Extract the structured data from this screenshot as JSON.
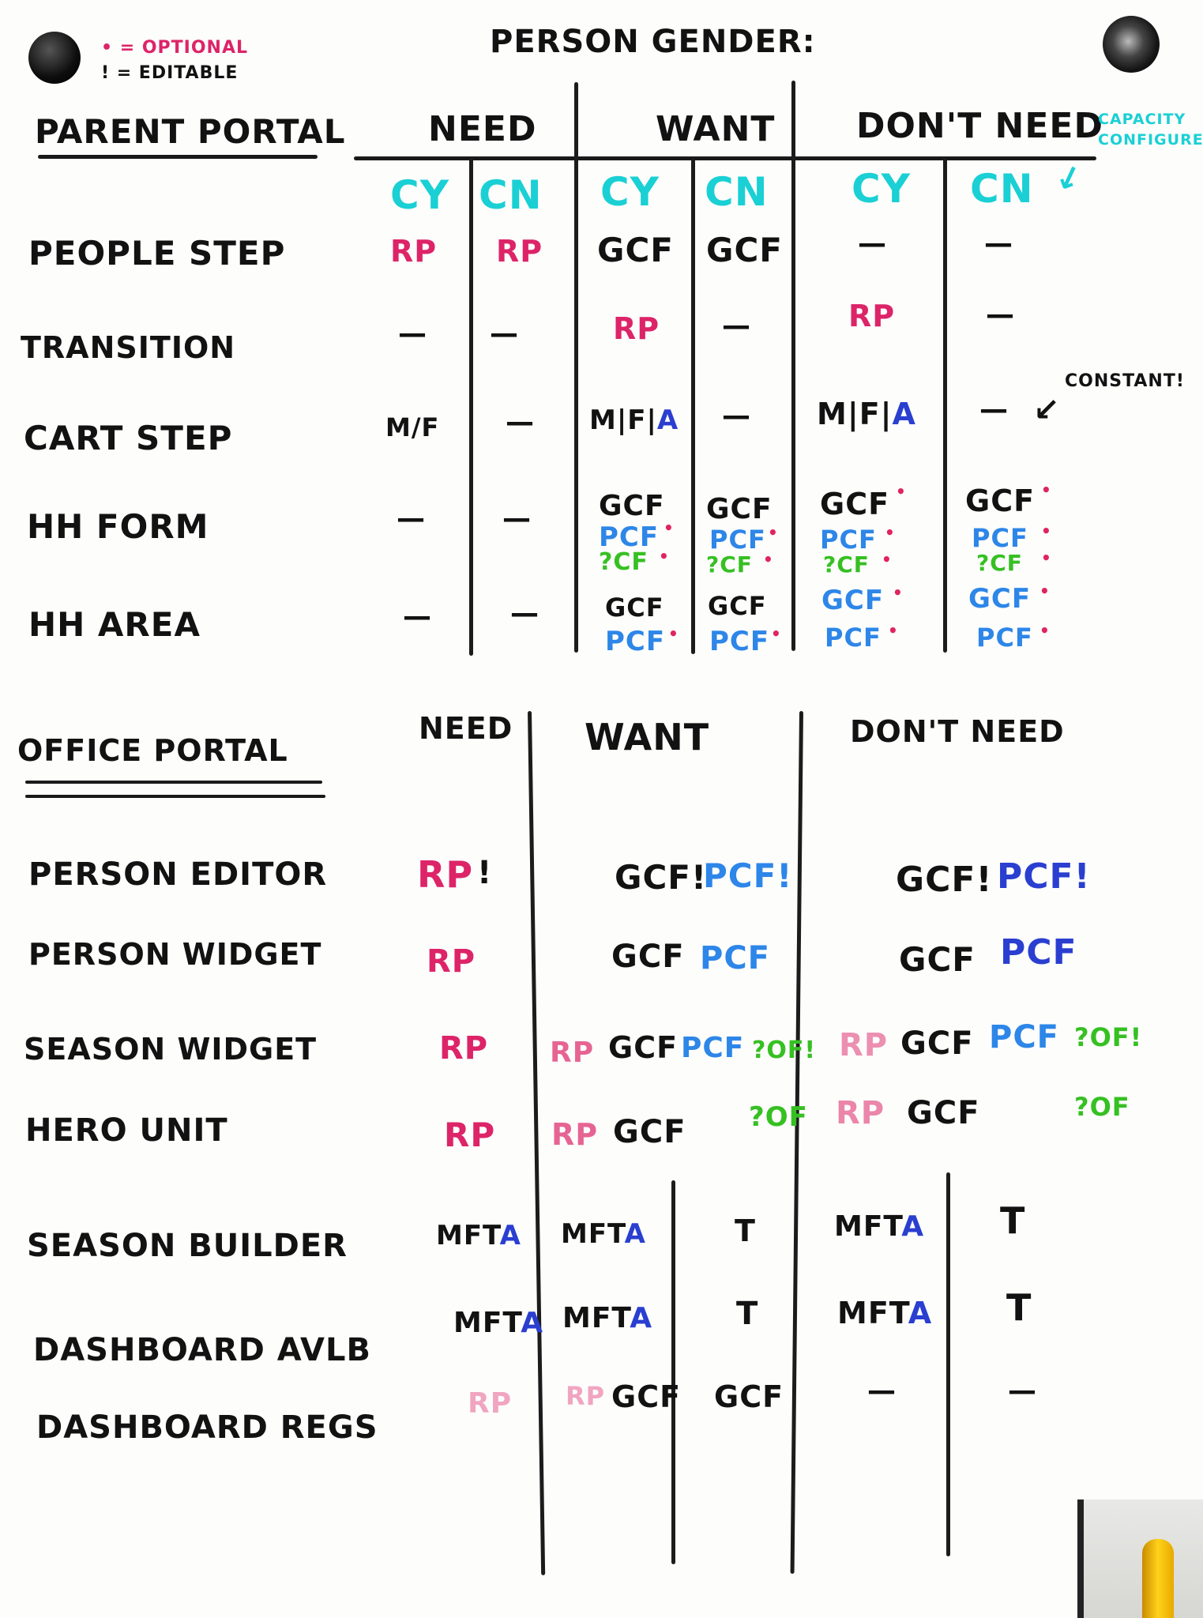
{
  "colors": {
    "black": "#121212",
    "pink": "#dd2468",
    "cyan": "#1ad0d4",
    "blue": "#2d86e8",
    "darkblue": "#2a3fd0",
    "green": "#36c022"
  },
  "header": {
    "title": "PERSON   GENDER:",
    "legend_optional": "• = OPTIONAL",
    "legend_editable": "! = EDITABLE",
    "capacity_note": "CAPACITY CONFIGURED",
    "constant_note": "CONSTANT!"
  },
  "parent": {
    "title": "PARENT  PORTAL",
    "groups": [
      "NEED",
      "WANT",
      "DON'T  NEED"
    ],
    "subcols": [
      "CY",
      "CN",
      "CY",
      "CN",
      "CY",
      "CN"
    ],
    "rows": [
      {
        "label": "PEOPLE  STEP",
        "cells": [
          "RP",
          "RP",
          "GCF",
          "GCF",
          "—",
          "—"
        ]
      },
      {
        "label": "TRANSITION",
        "cells": [
          "—",
          "—",
          "RP",
          "—",
          "RP",
          "—"
        ]
      },
      {
        "label": "CART  STEP",
        "cells": [
          "M/F",
          "—",
          "M|F|A",
          "—",
          "M|F|A",
          "—"
        ]
      },
      {
        "label": "HH  FORM",
        "cells": [
          "—",
          "—",
          "GCF / PCF• / ?CF•",
          "GCF / PCF• / ?CF•",
          "GCF• / PCF• / ?CF•",
          "GCF• / PCF• / ?CF•"
        ]
      },
      {
        "label": "HH  AREA",
        "cells": [
          "—",
          "—",
          "GCF / PCF•",
          "GCF / PCF•",
          "GCF• / PCF•",
          "GCF• / PCF•"
        ]
      }
    ]
  },
  "office": {
    "title": "OFFICE  PORTAL",
    "groups": [
      "NEED",
      "WANT",
      "DON'T  NEED"
    ],
    "rows": [
      {
        "label": "PERSON  EDITOR",
        "need": "RP!",
        "want": "GCF!  PCF!",
        "dont": "GCF!  PCF!"
      },
      {
        "label": "PERSON  WIDGET",
        "need": "RP",
        "want": "GCF  PCF",
        "dont": "GCF  PCF"
      },
      {
        "label": "SEASON  WIDGET",
        "need": "RP",
        "want": "RP  GCF  PCF  ?OF!",
        "dont": "RP  GCF  PCF  ?OF!"
      },
      {
        "label": "HERO  UNIT",
        "need": "RP",
        "want": "RP  GCF  ?OF",
        "dont": "RP  GCF  ?OF"
      },
      {
        "label": "SEASON  BUILDER",
        "need": "MFTA",
        "want": "MFTA  |  T",
        "dont": "MFTA  |  T"
      },
      {
        "label": "DASHBOARD  AVLB",
        "need": "MFTA",
        "want": "MFTA  |  T",
        "dont": "MFTA  |  T"
      },
      {
        "label": "DASHBOARD  REGS",
        "need": "RP",
        "want": "RP  GCF  |  GCF",
        "dont": "—  |  —"
      }
    ]
  },
  "tokens": {
    "dash": "—",
    "RP": "RP",
    "GCF": "GCF",
    "PCF": "PCF",
    "QCF": "?CF",
    "QOF": "?OF",
    "QOFX": "?OF!",
    "GCFX": "GCF!",
    "PCFX": "PCF!",
    "RPX": "RP",
    "bang": "!",
    "dot": "•",
    "MF": "M/F",
    "MFA": "M|F|",
    "A": "A",
    "MFTA": "MFT",
    "T": "T"
  }
}
